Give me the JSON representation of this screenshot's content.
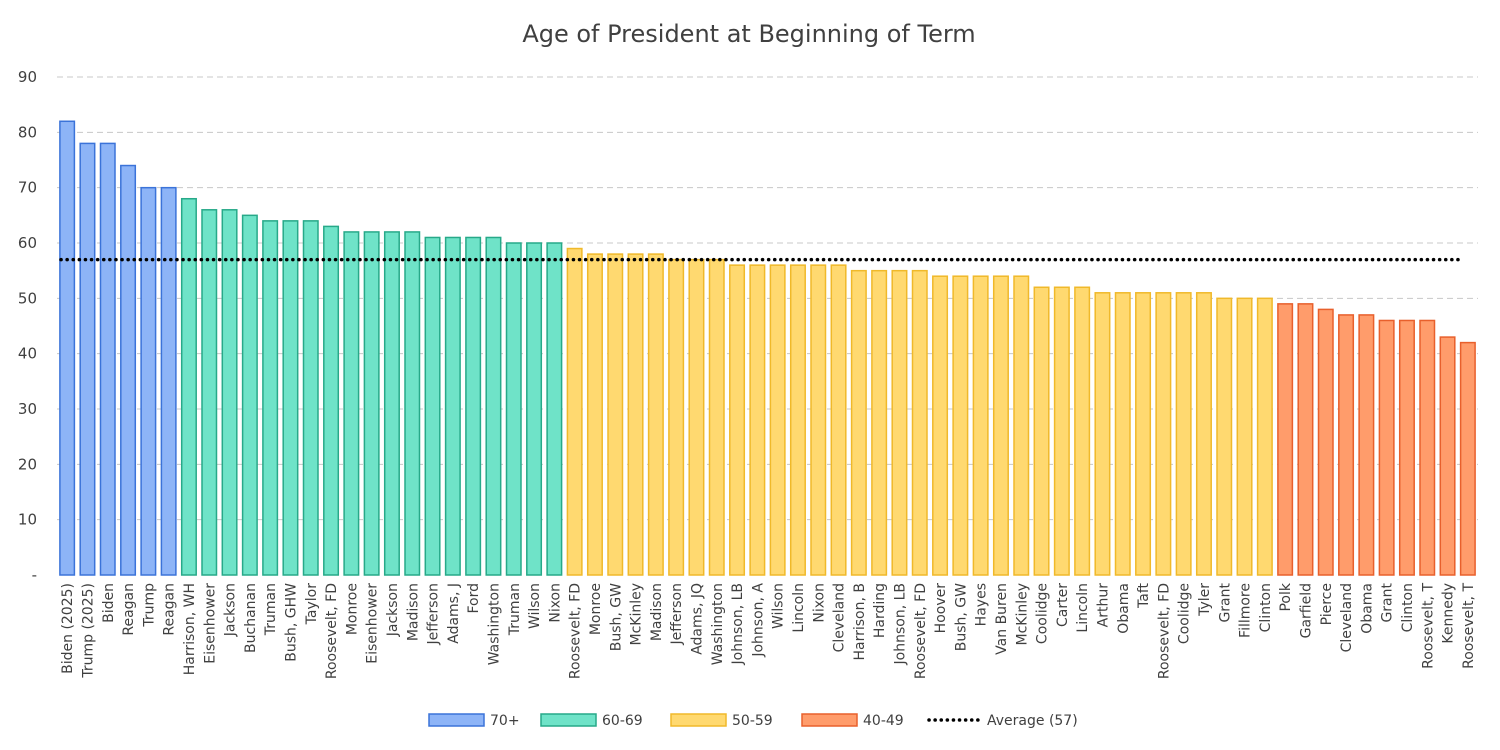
{
  "chart_data": {
    "type": "bar",
    "title": "Age of President at Beginning of Term",
    "xlabel": "",
    "ylabel": "",
    "ylim": [
      0,
      90
    ],
    "yticks": [
      0,
      10,
      20,
      30,
      40,
      50,
      60,
      70,
      80,
      90
    ],
    "ytick_labels": [
      "-",
      "10",
      "20",
      "30",
      "40",
      "50",
      "60",
      "70",
      "80",
      "90"
    ],
    "grid": true,
    "legend_position": "bottom",
    "categories": [
      "Biden (2025)",
      "Trump (2025)",
      "Biden",
      "Reagan",
      "Trump",
      "Reagan",
      "Harrison, WH",
      "Eisenhower",
      "Jackson",
      "Buchanan",
      "Truman",
      "Bush, GHW",
      "Taylor",
      "Roosevelt, FD",
      "Monroe",
      "Eisenhower",
      "Jackson",
      "Madison",
      "Jefferson",
      "Adams, J",
      "Ford",
      "Washington",
      "Truman",
      "Wilson",
      "Nixon",
      "Roosevelt, FD",
      "Monroe",
      "Bush, GW",
      "McKinley",
      "Madison",
      "Jefferson",
      "Adams, JQ",
      "Washington",
      "Johnson, LB",
      "Johnson, A",
      "Wilson",
      "Lincoln",
      "Nixon",
      "Cleveland",
      "Harrison, B",
      "Harding",
      "Johnson, LB",
      "Roosevelt, FD",
      "Hoover",
      "Bush, GW",
      "Hayes",
      "Van Buren",
      "McKinley",
      "Coolidge",
      "Carter",
      "Lincoln",
      "Arthur",
      "Obama",
      "Taft",
      "Roosevelt, FD",
      "Coolidge",
      "Tyler",
      "Grant",
      "Fillmore",
      "Clinton",
      "Polk",
      "Garfield",
      "Pierce",
      "Cleveland",
      "Obama",
      "Grant",
      "Clinton",
      "Roosevelt, T",
      "Kennedy",
      "Roosevelt, T"
    ],
    "values": [
      82,
      78,
      78,
      74,
      70,
      70,
      68,
      66,
      66,
      65,
      64,
      64,
      64,
      63,
      62,
      62,
      62,
      62,
      61,
      61,
      61,
      61,
      60,
      60,
      60,
      59,
      58,
      58,
      58,
      58,
      57,
      57,
      57,
      56,
      56,
      56,
      56,
      56,
      56,
      55,
      55,
      55,
      55,
      54,
      54,
      54,
      54,
      54,
      52,
      52,
      52,
      51,
      51,
      51,
      51,
      51,
      51,
      50,
      50,
      50,
      49,
      49,
      48,
      47,
      47,
      46,
      46,
      46,
      43,
      42
    ],
    "groups": [
      {
        "name": "70+",
        "min": 70,
        "max": 200,
        "fill": "#8DB4F7",
        "stroke": "#3B73D9"
      },
      {
        "name": "60-69",
        "min": 60,
        "max": 69.99,
        "fill": "#6FE3C8",
        "stroke": "#27A989"
      },
      {
        "name": "50-59",
        "min": 50,
        "max": 59.99,
        "fill": "#FFD970",
        "stroke": "#F0B92A"
      },
      {
        "name": "40-49",
        "min": 0,
        "max": 49.99,
        "fill": "#FF9C6B",
        "stroke": "#E8602C"
      }
    ],
    "average": {
      "name": "Average (57)",
      "value": 57,
      "color": "#000000"
    }
  }
}
